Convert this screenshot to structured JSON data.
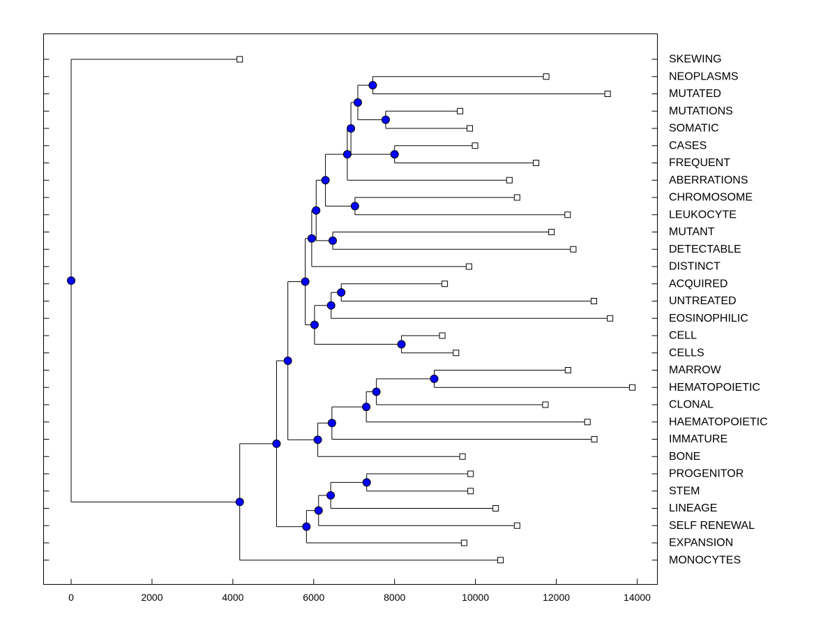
{
  "chart_data": {
    "type": "dendrogram",
    "orientation": "horizontal",
    "title": "",
    "xlabel": "",
    "ylabel": "",
    "xlim": [
      -700,
      14500
    ],
    "x_ticks": [
      0,
      2000,
      4000,
      6000,
      8000,
      10000,
      12000,
      14000
    ],
    "x_tick_labels": [
      "0",
      "2000",
      "4000",
      "6000",
      "8000",
      "10000",
      "12000",
      "14000"
    ],
    "colors": {
      "node_fill": "#0000ff",
      "leaf_fill": "#ffffff",
      "line": "#000000"
    },
    "leaves": [
      {
        "label": "SKEWING",
        "x": 4170
      },
      {
        "label": "NEOPLASMS",
        "x": 11750
      },
      {
        "label": "MUTATED",
        "x": 13270
      },
      {
        "label": "MUTATIONS",
        "x": 9620
      },
      {
        "label": "SOMATIC",
        "x": 9860
      },
      {
        "label": "CASES",
        "x": 9990
      },
      {
        "label": "FREQUENT",
        "x": 11500
      },
      {
        "label": "ABERRATIONS",
        "x": 10840
      },
      {
        "label": "CHROMOSOME",
        "x": 11030
      },
      {
        "label": "LEUKOCYTE",
        "x": 12280
      },
      {
        "label": "MUTANT",
        "x": 11880
      },
      {
        "label": "DETECTABLE",
        "x": 12420
      },
      {
        "label": "DISTINCT",
        "x": 9840
      },
      {
        "label": "ACQUIRED",
        "x": 9240
      },
      {
        "label": "UNTREATED",
        "x": 12930
      },
      {
        "label": "EOSINOPHILIC",
        "x": 13330
      },
      {
        "label": "CELL",
        "x": 9180
      },
      {
        "label": "CELLS",
        "x": 9520
      },
      {
        "label": "MARROW",
        "x": 12290
      },
      {
        "label": "HEMATOPOIETIC",
        "x": 13880
      },
      {
        "label": "CLONAL",
        "x": 11730
      },
      {
        "label": "HAEMATOPOIETIC",
        "x": 12770
      },
      {
        "label": "IMMATURE",
        "x": 12940
      },
      {
        "label": "BONE",
        "x": 9680
      },
      {
        "label": "PROGENITOR",
        "x": 9880
      },
      {
        "label": "STEM",
        "x": 9880
      },
      {
        "label": "LINEAGE",
        "x": 10500
      },
      {
        "label": "SELF RENEWAL",
        "x": 11030
      },
      {
        "label": "EXPANSION",
        "x": 9720
      },
      {
        "label": "MONOCYTES",
        "x": 10620
      }
    ],
    "tree": {
      "x": 0,
      "children": [
        {
          "leaf": 0
        },
        {
          "x": 4170,
          "children": [
            {
              "x": 5080,
              "children": [
                {
                  "x": 5360,
                  "children": [
                    {
                      "x": 5790,
                      "children": [
                        {
                          "x": 5950,
                          "children": [
                            {
                              "x": 6060,
                              "children": [
                                {
                                  "x": 6290,
                                  "children": [
                                    {
                                      "x": 6830,
                                      "children": [
                                        {
                                          "x": 6920,
                                          "children": [
                                            {
                                              "x": 7090,
                                              "children": [
                                                {
                                                  "x": 7460,
                                                  "children": [
                                                    {
                                                      "leaf": 1
                                                    },
                                                    {
                                                      "leaf": 2
                                                    }
                                                  ]
                                                },
                                                {
                                                  "x": 7780,
                                                  "children": [
                                                    {
                                                      "leaf": 3
                                                    },
                                                    {
                                                      "leaf": 4
                                                    }
                                                  ]
                                                }
                                              ]
                                            },
                                            {
                                              "x": 8000,
                                              "children": [
                                                {
                                                  "leaf": 5
                                                },
                                                {
                                                  "leaf": 6
                                                }
                                              ]
                                            }
                                          ]
                                        },
                                        {
                                          "leaf": 7
                                        }
                                      ]
                                    },
                                    {
                                      "x": 7020,
                                      "children": [
                                        {
                                          "leaf": 8
                                        },
                                        {
                                          "leaf": 9
                                        }
                                      ]
                                    }
                                  ]
                                },
                                {
                                  "x": 6470,
                                  "children": [
                                    {
                                      "leaf": 10
                                    },
                                    {
                                      "leaf": 11
                                    }
                                  ]
                                }
                              ]
                            },
                            {
                              "leaf": 12
                            }
                          ]
                        },
                        {
                          "x": 6020,
                          "children": [
                            {
                              "x": 6430,
                              "children": [
                                {
                                  "x": 6680,
                                  "children": [
                                    {
                                      "leaf": 13
                                    },
                                    {
                                      "leaf": 14
                                    }
                                  ]
                                },
                                {
                                  "leaf": 15
                                }
                              ]
                            },
                            {
                              "x": 8170,
                              "children": [
                                {
                                  "leaf": 16
                                },
                                {
                                  "leaf": 17
                                }
                              ]
                            }
                          ]
                        }
                      ]
                    },
                    {
                      "x": 6100,
                      "children": [
                        {
                          "x": 6450,
                          "children": [
                            {
                              "x": 7300,
                              "children": [
                                {
                                  "x": 7550,
                                  "children": [
                                    {
                                      "x": 8980,
                                      "children": [
                                        {
                                          "leaf": 18
                                        },
                                        {
                                          "leaf": 19
                                        }
                                      ]
                                    },
                                    {
                                      "leaf": 20
                                    }
                                  ]
                                },
                                {
                                  "leaf": 21
                                }
                              ]
                            },
                            {
                              "leaf": 22
                            }
                          ]
                        },
                        {
                          "leaf": 23
                        }
                      ]
                    }
                  ]
                },
                {
                  "x": 5820,
                  "children": [
                    {
                      "x": 6120,
                      "children": [
                        {
                          "x": 6420,
                          "children": [
                            {
                              "x": 7310,
                              "children": [
                                {
                                  "leaf": 24
                                },
                                {
                                  "leaf": 25
                                }
                              ]
                            },
                            {
                              "leaf": 26
                            }
                          ]
                        },
                        {
                          "leaf": 27
                        }
                      ]
                    },
                    {
                      "leaf": 28
                    }
                  ]
                }
              ]
            },
            {
              "leaf": 29
            }
          ]
        }
      ]
    }
  }
}
